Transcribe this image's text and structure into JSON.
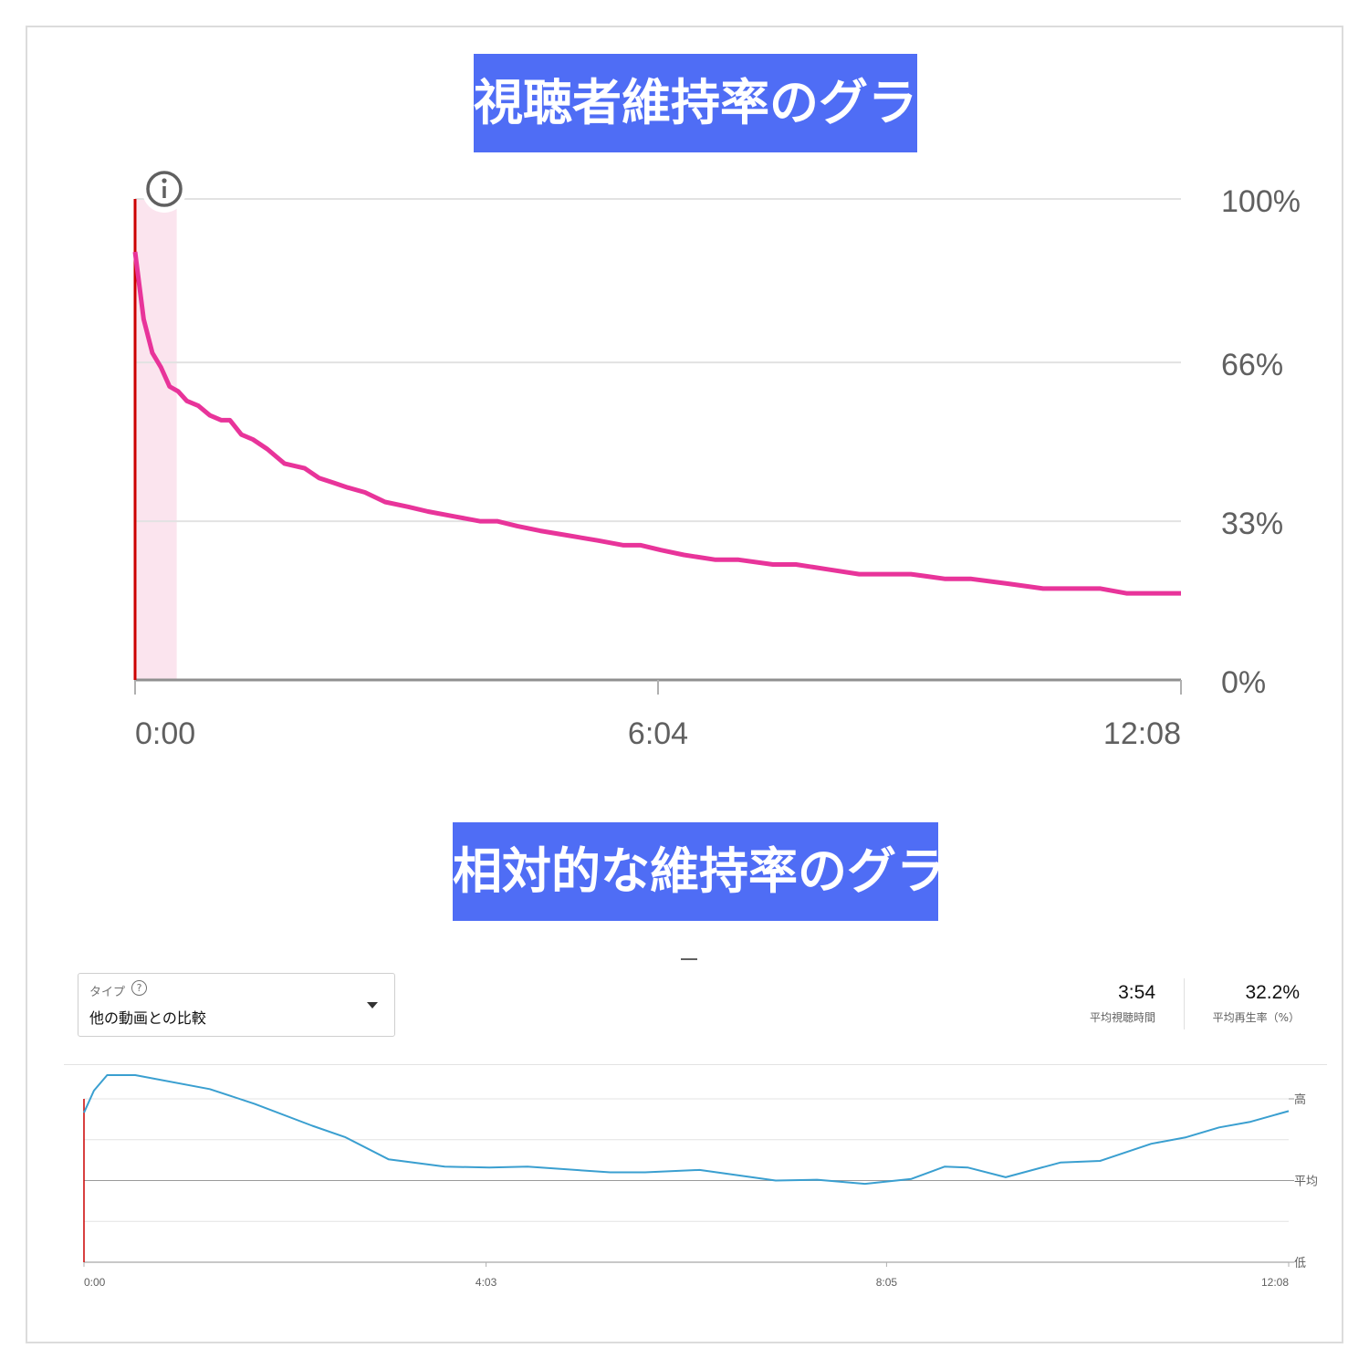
{
  "banner1": "視聴者維持率のグラフ",
  "banner2": "相対的な維持率のグラフ",
  "colors": {
    "banner_bg": "#4f6df5",
    "retention_line": "#e8349a",
    "relative_line": "#3a9fd0",
    "marker": "#cc0000",
    "highlight": "#fbe4ee"
  },
  "icons": {
    "info": "info-circle-icon",
    "help": "question-circle-icon",
    "dropdown": "caret-down-icon"
  },
  "controls": {
    "type_label": "タイプ",
    "type_value": "他の動画との比較",
    "avg_view_duration": "3:54",
    "avg_view_duration_label": "平均視聴時間",
    "avg_percentage": "32.2%",
    "avg_percentage_label": "平均再生率（%）"
  },
  "chart_data": [
    {
      "type": "line",
      "title": "",
      "x_unit": "seconds",
      "x_tick_labels": [
        "0:00",
        "6:04",
        "12:08"
      ],
      "x_tick_values": [
        0,
        364,
        728
      ],
      "xlim": [
        0,
        728
      ],
      "y_tick_labels": [
        "100%",
        "66%",
        "33%",
        "0%"
      ],
      "y_tick_values": [
        100,
        66,
        33,
        0
      ],
      "ylim": [
        0,
        100
      ],
      "grid": true,
      "highlight_range": [
        0,
        29
      ],
      "series": [
        {
          "x": [
            0,
            6,
            12,
            18,
            24,
            30,
            36,
            44,
            52,
            60,
            66,
            74,
            82,
            92,
            104,
            118,
            128,
            138,
            148,
            160,
            174,
            190,
            204,
            222,
            240,
            252,
            266,
            282,
            302,
            322,
            340,
            352,
            366,
            382,
            404,
            420,
            444,
            460,
            482,
            504,
            520,
            540,
            564,
            582,
            608,
            632,
            654,
            672,
            690,
            708,
            728
          ],
          "values": [
            89,
            75,
            68,
            65,
            61,
            60,
            58,
            57,
            55,
            54,
            54,
            51,
            50,
            48,
            45,
            44,
            42,
            41,
            40,
            39,
            37,
            36,
            35,
            34,
            33,
            33,
            32,
            31,
            30,
            29,
            28,
            28,
            27,
            26,
            25,
            25,
            24,
            24,
            23,
            22,
            22,
            22,
            21,
            21,
            20,
            19,
            19,
            19,
            18,
            18,
            18
          ]
        }
      ]
    },
    {
      "type": "line",
      "title": "",
      "x_unit": "seconds",
      "x_tick_labels": [
        "0:00",
        "4:03",
        "8:05",
        "12:08"
      ],
      "x_tick_values": [
        0,
        243,
        485,
        728
      ],
      "xlim": [
        0,
        728
      ],
      "y_tick_labels": [
        "高",
        "平均",
        "低"
      ],
      "y_tick_values": [
        1,
        0,
        -1
      ],
      "ylim": [
        -1,
        1
      ],
      "grid": true,
      "series": [
        {
          "x": [
            0,
            6,
            14,
            31,
            76,
            103,
            138,
            158,
            184,
            218,
            245,
            268,
            318,
            339,
            372,
            418,
            443,
            472,
            500,
            520,
            534,
            557,
            590,
            614,
            645,
            666,
            686,
            705,
            719,
            728
          ],
          "values": [
            0.83,
            1.1,
            1.29,
            1.29,
            1.12,
            0.94,
            0.67,
            0.53,
            0.26,
            0.17,
            0.16,
            0.17,
            0.1,
            0.1,
            0.13,
            0.0,
            0.01,
            -0.04,
            0.02,
            0.17,
            0.16,
            0.04,
            0.22,
            0.24,
            0.45,
            0.53,
            0.65,
            0.72,
            0.8,
            0.85
          ]
        }
      ]
    }
  ]
}
